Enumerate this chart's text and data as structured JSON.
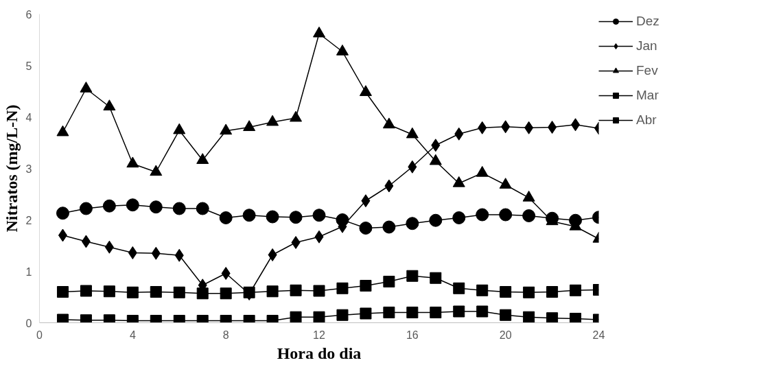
{
  "chart_data": {
    "type": "line",
    "xlabel": "Hora do dia",
    "ylabel": "Nitratos (mg/L-N)",
    "x": [
      1,
      2,
      3,
      4,
      5,
      6,
      7,
      8,
      9,
      10,
      11,
      12,
      13,
      14,
      15,
      16,
      17,
      18,
      19,
      20,
      21,
      22,
      23,
      24
    ],
    "xlim": [
      0,
      24
    ],
    "xticks": [
      0,
      4,
      8,
      12,
      16,
      20,
      24
    ],
    "ylim": [
      0,
      6
    ],
    "yticks": [
      0,
      1,
      2,
      3,
      4,
      5,
      6
    ],
    "grid": false,
    "legend": "right",
    "line_style": "solid",
    "series": [
      {
        "name": "Dez",
        "color": "#000000",
        "marker": "circle",
        "values": [
          2.13,
          2.22,
          2.27,
          2.29,
          2.25,
          2.22,
          2.22,
          2.04,
          2.09,
          2.06,
          2.05,
          2.09,
          2.0,
          1.84,
          1.86,
          1.93,
          1.99,
          2.04,
          2.1,
          2.1,
          2.08,
          2.03,
          1.99,
          2.05
        ]
      },
      {
        "name": "Jan",
        "color": "#000000",
        "marker": "diamond",
        "values": [
          1.7,
          1.58,
          1.47,
          1.36,
          1.35,
          1.31,
          0.73,
          0.96,
          0.56,
          1.32,
          1.56,
          1.67,
          1.87,
          2.37,
          2.66,
          3.03,
          3.45,
          3.67,
          3.79,
          3.81,
          3.79,
          3.8,
          3.85,
          3.78
        ]
      },
      {
        "name": "Fev",
        "color": "#000000",
        "marker": "triangle",
        "values": [
          3.7,
          4.55,
          4.2,
          3.09,
          2.93,
          3.74,
          3.16,
          3.73,
          3.8,
          3.9,
          3.98,
          5.62,
          5.27,
          4.48,
          3.85,
          3.66,
          3.14,
          2.71,
          2.91,
          2.68,
          2.43,
          1.97,
          1.87,
          1.63
        ]
      },
      {
        "name": "Mar",
        "color": "#000000",
        "marker": "square",
        "values": [
          0.06,
          0.05,
          0.05,
          0.04,
          0.04,
          0.04,
          0.04,
          0.04,
          0.04,
          0.04,
          0.11,
          0.11,
          0.15,
          0.18,
          0.2,
          0.2,
          0.2,
          0.22,
          0.22,
          0.15,
          0.11,
          0.09,
          0.08,
          0.06
        ]
      },
      {
        "name": "Abr",
        "color": "#000000",
        "marker": "square",
        "values": [
          0.6,
          0.62,
          0.61,
          0.59,
          0.6,
          0.59,
          0.57,
          0.57,
          0.59,
          0.61,
          0.63,
          0.62,
          0.67,
          0.72,
          0.8,
          0.91,
          0.87,
          0.67,
          0.63,
          0.6,
          0.59,
          0.6,
          0.63,
          0.64
        ]
      }
    ]
  }
}
